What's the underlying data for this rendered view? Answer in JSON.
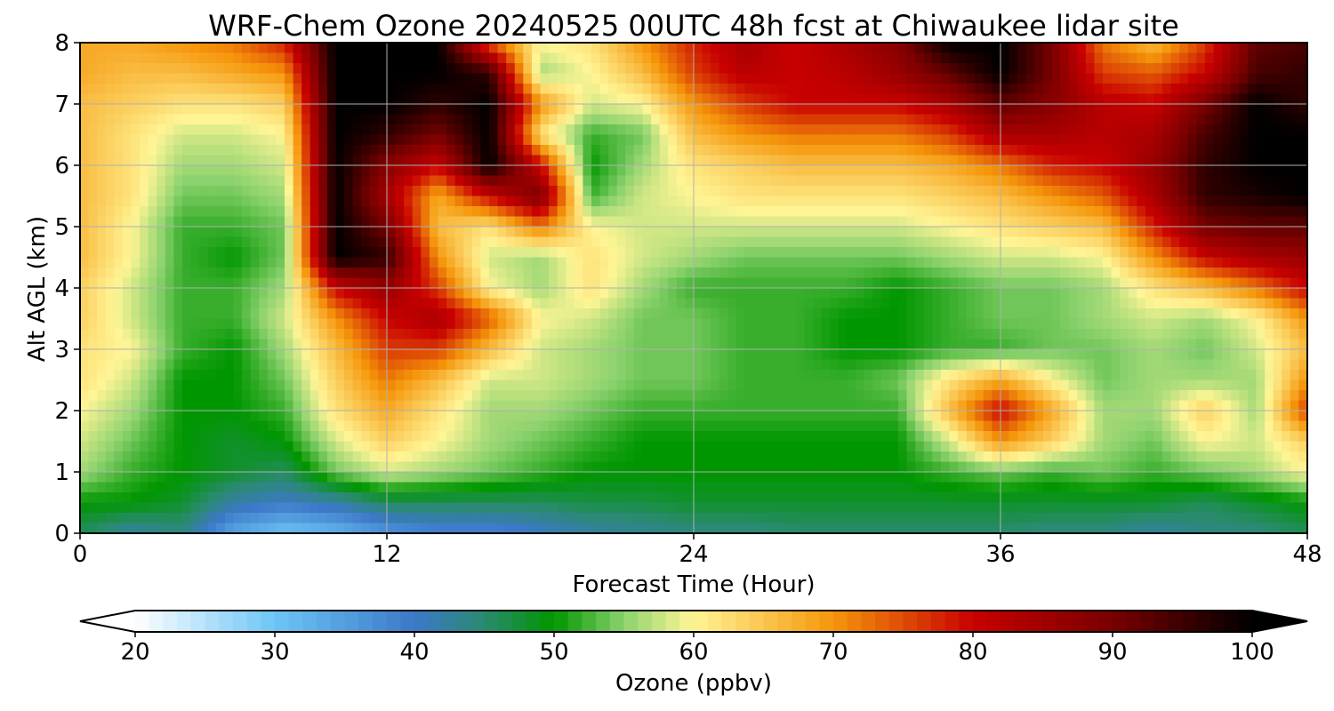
{
  "chart_data": {
    "type": "heatmap",
    "title": "WRF-Chem Ozone  20240525 00UTC 48h fcst at Chiwaukee lidar site",
    "xlabel": "Forecast Time (Hour)",
    "ylabel": "Alt AGL (km)",
    "xlim": [
      0,
      48
    ],
    "ylim": [
      0,
      8
    ],
    "xticks": [
      0,
      12,
      24,
      36,
      48
    ],
    "yticks": [
      0,
      1,
      2,
      3,
      4,
      5,
      6,
      7,
      8
    ],
    "grid": true,
    "colorbar": {
      "label": "Ozone  (ppbv)",
      "min": 20,
      "max": 100,
      "ticks": [
        20,
        30,
        40,
        50,
        60,
        70,
        80,
        90,
        100
      ],
      "extend": "both",
      "stops": [
        {
          "v": 20,
          "c": "#ffffff"
        },
        {
          "v": 30,
          "c": "#6cc5f5"
        },
        {
          "v": 40,
          "c": "#3c78c8"
        },
        {
          "v": 45,
          "c": "#2a8a70"
        },
        {
          "v": 50,
          "c": "#009600"
        },
        {
          "v": 55,
          "c": "#8cd26e"
        },
        {
          "v": 60,
          "c": "#fff596"
        },
        {
          "v": 70,
          "c": "#f5960a"
        },
        {
          "v": 80,
          "c": "#c80000"
        },
        {
          "v": 90,
          "c": "#780000"
        },
        {
          "v": 100,
          "c": "#000000"
        }
      ]
    },
    "x": [
      0,
      2,
      4,
      6,
      8,
      10,
      12,
      14,
      16,
      18,
      20,
      22,
      24,
      26,
      28,
      30,
      32,
      34,
      36,
      38,
      40,
      42,
      44,
      46,
      48
    ],
    "y": [
      0,
      0.5,
      1,
      1.5,
      2,
      2.5,
      3,
      3.5,
      4,
      4.5,
      5,
      5.5,
      6,
      6.5,
      7,
      7.5,
      8
    ],
    "z": [
      [
        46,
        42,
        44,
        34,
        30,
        32,
        36,
        38,
        38,
        40,
        42,
        43,
        44,
        44,
        45,
        45,
        45,
        45,
        45,
        44,
        44,
        42,
        44,
        44,
        46
      ],
      [
        50,
        50,
        48,
        42,
        40,
        42,
        46,
        46,
        46,
        46,
        47,
        47,
        48,
        48,
        48,
        48,
        48,
        48,
        48,
        48,
        48,
        48,
        46,
        48,
        50
      ],
      [
        56,
        52,
        50,
        48,
        46,
        54,
        58,
        56,
        54,
        52,
        50,
        50,
        50,
        50,
        50,
        50,
        50,
        52,
        54,
        52,
        54,
        52,
        54,
        56,
        60
      ],
      [
        58,
        54,
        50,
        48,
        50,
        58,
        64,
        60,
        56,
        54,
        52,
        50,
        50,
        50,
        50,
        50,
        50,
        58,
        70,
        64,
        56,
        54,
        60,
        58,
        64
      ],
      [
        60,
        56,
        50,
        50,
        52,
        62,
        68,
        62,
        56,
        56,
        54,
        52,
        52,
        52,
        52,
        52,
        52,
        66,
        80,
        68,
        56,
        56,
        64,
        56,
        76
      ],
      [
        62,
        58,
        50,
        50,
        54,
        64,
        72,
        66,
        58,
        58,
        56,
        54,
        54,
        52,
        52,
        52,
        54,
        62,
        68,
        60,
        54,
        56,
        56,
        56,
        70
      ],
      [
        62,
        60,
        52,
        50,
        56,
        66,
        76,
        76,
        66,
        58,
        56,
        54,
        54,
        52,
        52,
        50,
        50,
        52,
        52,
        54,
        54,
        56,
        54,
        58,
        66
      ],
      [
        64,
        58,
        52,
        52,
        58,
        70,
        80,
        84,
        74,
        60,
        58,
        54,
        54,
        52,
        52,
        50,
        50,
        52,
        54,
        54,
        56,
        58,
        56,
        60,
        70
      ],
      [
        64,
        58,
        52,
        52,
        56,
        80,
        86,
        76,
        60,
        56,
        62,
        56,
        52,
        52,
        52,
        52,
        50,
        52,
        54,
        54,
        56,
        62,
        66,
        72,
        80
      ],
      [
        66,
        60,
        52,
        50,
        54,
        100,
        96,
        70,
        58,
        56,
        62,
        58,
        56,
        54,
        54,
        54,
        54,
        56,
        58,
        58,
        60,
        70,
        80,
        84,
        86
      ],
      [
        66,
        60,
        52,
        52,
        54,
        100,
        90,
        66,
        62,
        72,
        60,
        58,
        58,
        58,
        58,
        58,
        58,
        60,
        62,
        64,
        66,
        78,
        90,
        92,
        92
      ],
      [
        66,
        62,
        54,
        54,
        56,
        100,
        84,
        68,
        80,
        90,
        52,
        58,
        60,
        62,
        62,
        62,
        62,
        64,
        66,
        70,
        74,
        84,
        96,
        98,
        100
      ],
      [
        66,
        62,
        56,
        56,
        58,
        100,
        88,
        80,
        100,
        80,
        50,
        56,
        62,
        64,
        66,
        66,
        66,
        68,
        72,
        78,
        80,
        86,
        96,
        100,
        100
      ],
      [
        66,
        62,
        58,
        58,
        60,
        100,
        96,
        90,
        100,
        62,
        52,
        54,
        66,
        70,
        72,
        72,
        72,
        76,
        84,
        84,
        82,
        84,
        94,
        100,
        100
      ],
      [
        66,
        64,
        62,
        62,
        64,
        100,
        100,
        96,
        100,
        70,
        58,
        60,
        70,
        76,
        80,
        80,
        80,
        84,
        92,
        88,
        82,
        80,
        90,
        100,
        96
      ],
      [
        68,
        66,
        66,
        68,
        70,
        100,
        100,
        100,
        96,
        56,
        60,
        66,
        76,
        82,
        80,
        82,
        86,
        92,
        100,
        90,
        76,
        74,
        80,
        94,
        96
      ],
      [
        68,
        68,
        70,
        72,
        78,
        100,
        100,
        100,
        74,
        60,
        62,
        70,
        78,
        84,
        80,
        84,
        88,
        100,
        100,
        90,
        72,
        66,
        76,
        92,
        94
      ]
    ]
  }
}
